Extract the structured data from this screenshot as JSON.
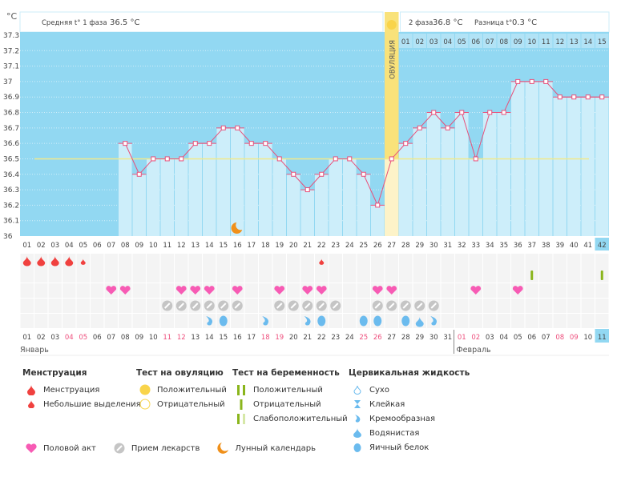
{
  "chart_data": {
    "type": "bar+line",
    "y_unit": "°C",
    "ylim": [
      36,
      37.3
    ],
    "yticks": [
      "36",
      "36.1",
      "36.2",
      "36.3",
      "36.4",
      "36.5",
      "36.6",
      "36.7",
      "36.8",
      "36.9",
      "37",
      "37.1",
      "37.2",
      "37.3"
    ],
    "grid": true,
    "cycle_days": [
      "01",
      "02",
      "03",
      "04",
      "05",
      "06",
      "07",
      "08",
      "09",
      "10",
      "11",
      "12",
      "13",
      "14",
      "15",
      "16",
      "17",
      "18",
      "19",
      "20",
      "21",
      "22",
      "23",
      "24",
      "25",
      "26",
      "27",
      "28",
      "29",
      "30",
      "31",
      "32",
      "33",
      "34",
      "35",
      "36",
      "37",
      "38",
      "39",
      "40",
      "41",
      "42"
    ],
    "temperatures": [
      null,
      null,
      null,
      null,
      null,
      null,
      null,
      36.6,
      36.4,
      36.5,
      36.5,
      36.5,
      36.6,
      36.6,
      36.7,
      36.7,
      36.6,
      36.6,
      36.5,
      36.4,
      36.3,
      36.4,
      36.5,
      36.5,
      36.4,
      36.2,
      36.5,
      36.6,
      36.7,
      36.8,
      36.7,
      36.8,
      36.5,
      36.8,
      36.8,
      37.0,
      37.0,
      37.0,
      36.9,
      36.9,
      36.9,
      36.9
    ],
    "phase1_avg_value": 36.5,
    "phase1_label": "Средняя t° 1 фаза",
    "phase1_avg": "36.5 °C",
    "phase2_label": "2 фаза",
    "phase2_avg": "36.8 °C",
    "diff_label": "Разница t°",
    "diff": "0.3 °C",
    "ovulation_day": 27,
    "ovulation_label": "ОВУЛЯЦИЯ",
    "phase2_days": [
      "01",
      "02",
      "03",
      "04",
      "05",
      "06",
      "07",
      "08",
      "09",
      "10",
      "11",
      "12",
      "13",
      "14",
      "15"
    ],
    "moon_day": 16,
    "current_day": 42,
    "dates": [
      "01",
      "02",
      "03",
      "04",
      "05",
      "06",
      "07",
      "08",
      "09",
      "10",
      "11",
      "12",
      "13",
      "14",
      "15",
      "16",
      "17",
      "18",
      "19",
      "20",
      "21",
      "22",
      "23",
      "24",
      "25",
      "26",
      "27",
      "28",
      "29",
      "30",
      "31",
      "01",
      "02",
      "03",
      "04",
      "05",
      "06",
      "07",
      "08",
      "09",
      "10",
      "11"
    ],
    "weekend_date_days": [
      4,
      5,
      11,
      12,
      18,
      19,
      25,
      26,
      32,
      33,
      39,
      40
    ],
    "months": [
      "Январь",
      "Февраль"
    ],
    "feb_start_day": 32,
    "menstruation": {
      "full": [
        1,
        2,
        3,
        4
      ],
      "light": [
        5,
        22
      ]
    },
    "pregnancy_test_negative": [
      37,
      42
    ],
    "intercourse": [
      7,
      8,
      12,
      13,
      14,
      16,
      19,
      21,
      22,
      26,
      27,
      33,
      36
    ],
    "medication": [
      11,
      12,
      13,
      14,
      15,
      16,
      19,
      20,
      21,
      22,
      23,
      26,
      27,
      28,
      29,
      30
    ],
    "cervical_fluid": {
      "creamy": [
        14,
        18,
        21,
        30
      ],
      "egg_white": [
        15,
        22,
        25,
        26,
        28
      ],
      "watery": [
        29
      ]
    }
  },
  "colors": {
    "dark": "#92d8f2",
    "light": "#cdeefa",
    "line": "#e8507a",
    "avg": "#f2e98a",
    "ovulation": "#f9e27a",
    "menstruation": "#f0413f",
    "heart": "#f75bb4",
    "pill": "#c5c5c5",
    "fluid": "#6bbbee",
    "test": "#8ab51c",
    "weekend": "#ee4f7d",
    "moon": "#f0901a"
  },
  "legend": {
    "menstruation": {
      "title": "Менструация",
      "items": [
        "Менструация",
        "Небольшие выделения"
      ]
    },
    "ovulation_test": {
      "title": "Тест на овуляцию",
      "items": [
        "Положительный",
        "Отрицательный"
      ]
    },
    "pregnancy_test": {
      "title": "Тест на беременность",
      "items": [
        "Положительный",
        "Отрицательный",
        "Слабоположительный"
      ]
    },
    "cervical": {
      "title": "Цервикальная жидкость",
      "items": [
        "Сухо",
        "Клейкая",
        "Кремообразная",
        "Водянистая",
        "Яичный белок"
      ]
    },
    "other": [
      "Половой акт",
      "Прием лекарств",
      "Лунный календарь"
    ]
  }
}
